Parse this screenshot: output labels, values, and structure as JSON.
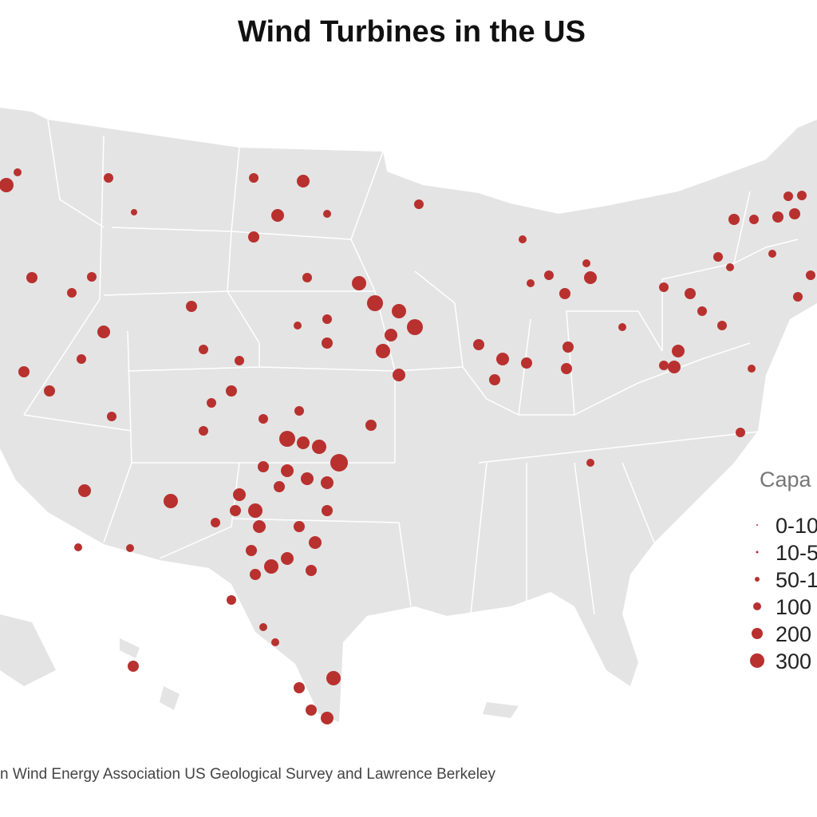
{
  "title": "Wind Turbines in the US",
  "legend": {
    "title": "Capa",
    "items": [
      "0-10",
      "10-5",
      "50-1",
      "100",
      "200",
      "300"
    ]
  },
  "source": "n Wind Energy Association  US Geological Survey and Lawrence Berkeley"
}
